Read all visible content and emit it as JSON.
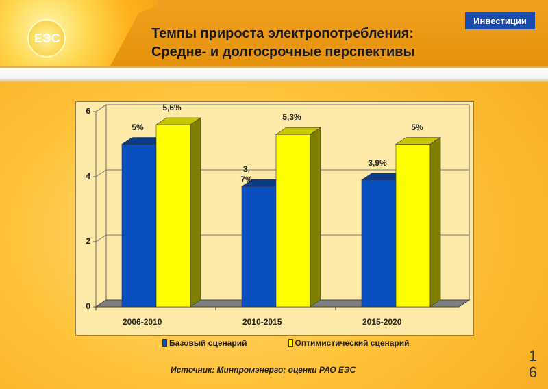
{
  "header": {
    "badge": "Инвестиции",
    "title_line1": "Темпы прироста электропотребления:",
    "title_line2": "Средне- и долгосрочные перспективы",
    "logo_text": "ЕЭС"
  },
  "chart_data": {
    "type": "bar",
    "categories": [
      "2006-2010",
      "2010-2015",
      "2015-2020"
    ],
    "series": [
      {
        "name": "Базовый сценарий",
        "color": "#0a4fc0",
        "values": [
          5,
          3.7,
          3.9
        ],
        "labels": [
          "5%",
          "3,7%",
          "3,9%"
        ]
      },
      {
        "name": "Оптимистический сценарий",
        "color": "#ffff00",
        "values": [
          5.6,
          5.3,
          5
        ],
        "labels": [
          "5,6%",
          "5,3%",
          "5%"
        ]
      }
    ],
    "yticks": [
      "0",
      "2",
      "4",
      "6"
    ],
    "ylim": [
      0,
      6
    ],
    "grid": true,
    "legend": "bottom"
  },
  "source": "Источник: Минпромэнерго; оценки РАО ЕЭС",
  "page_number": "16"
}
